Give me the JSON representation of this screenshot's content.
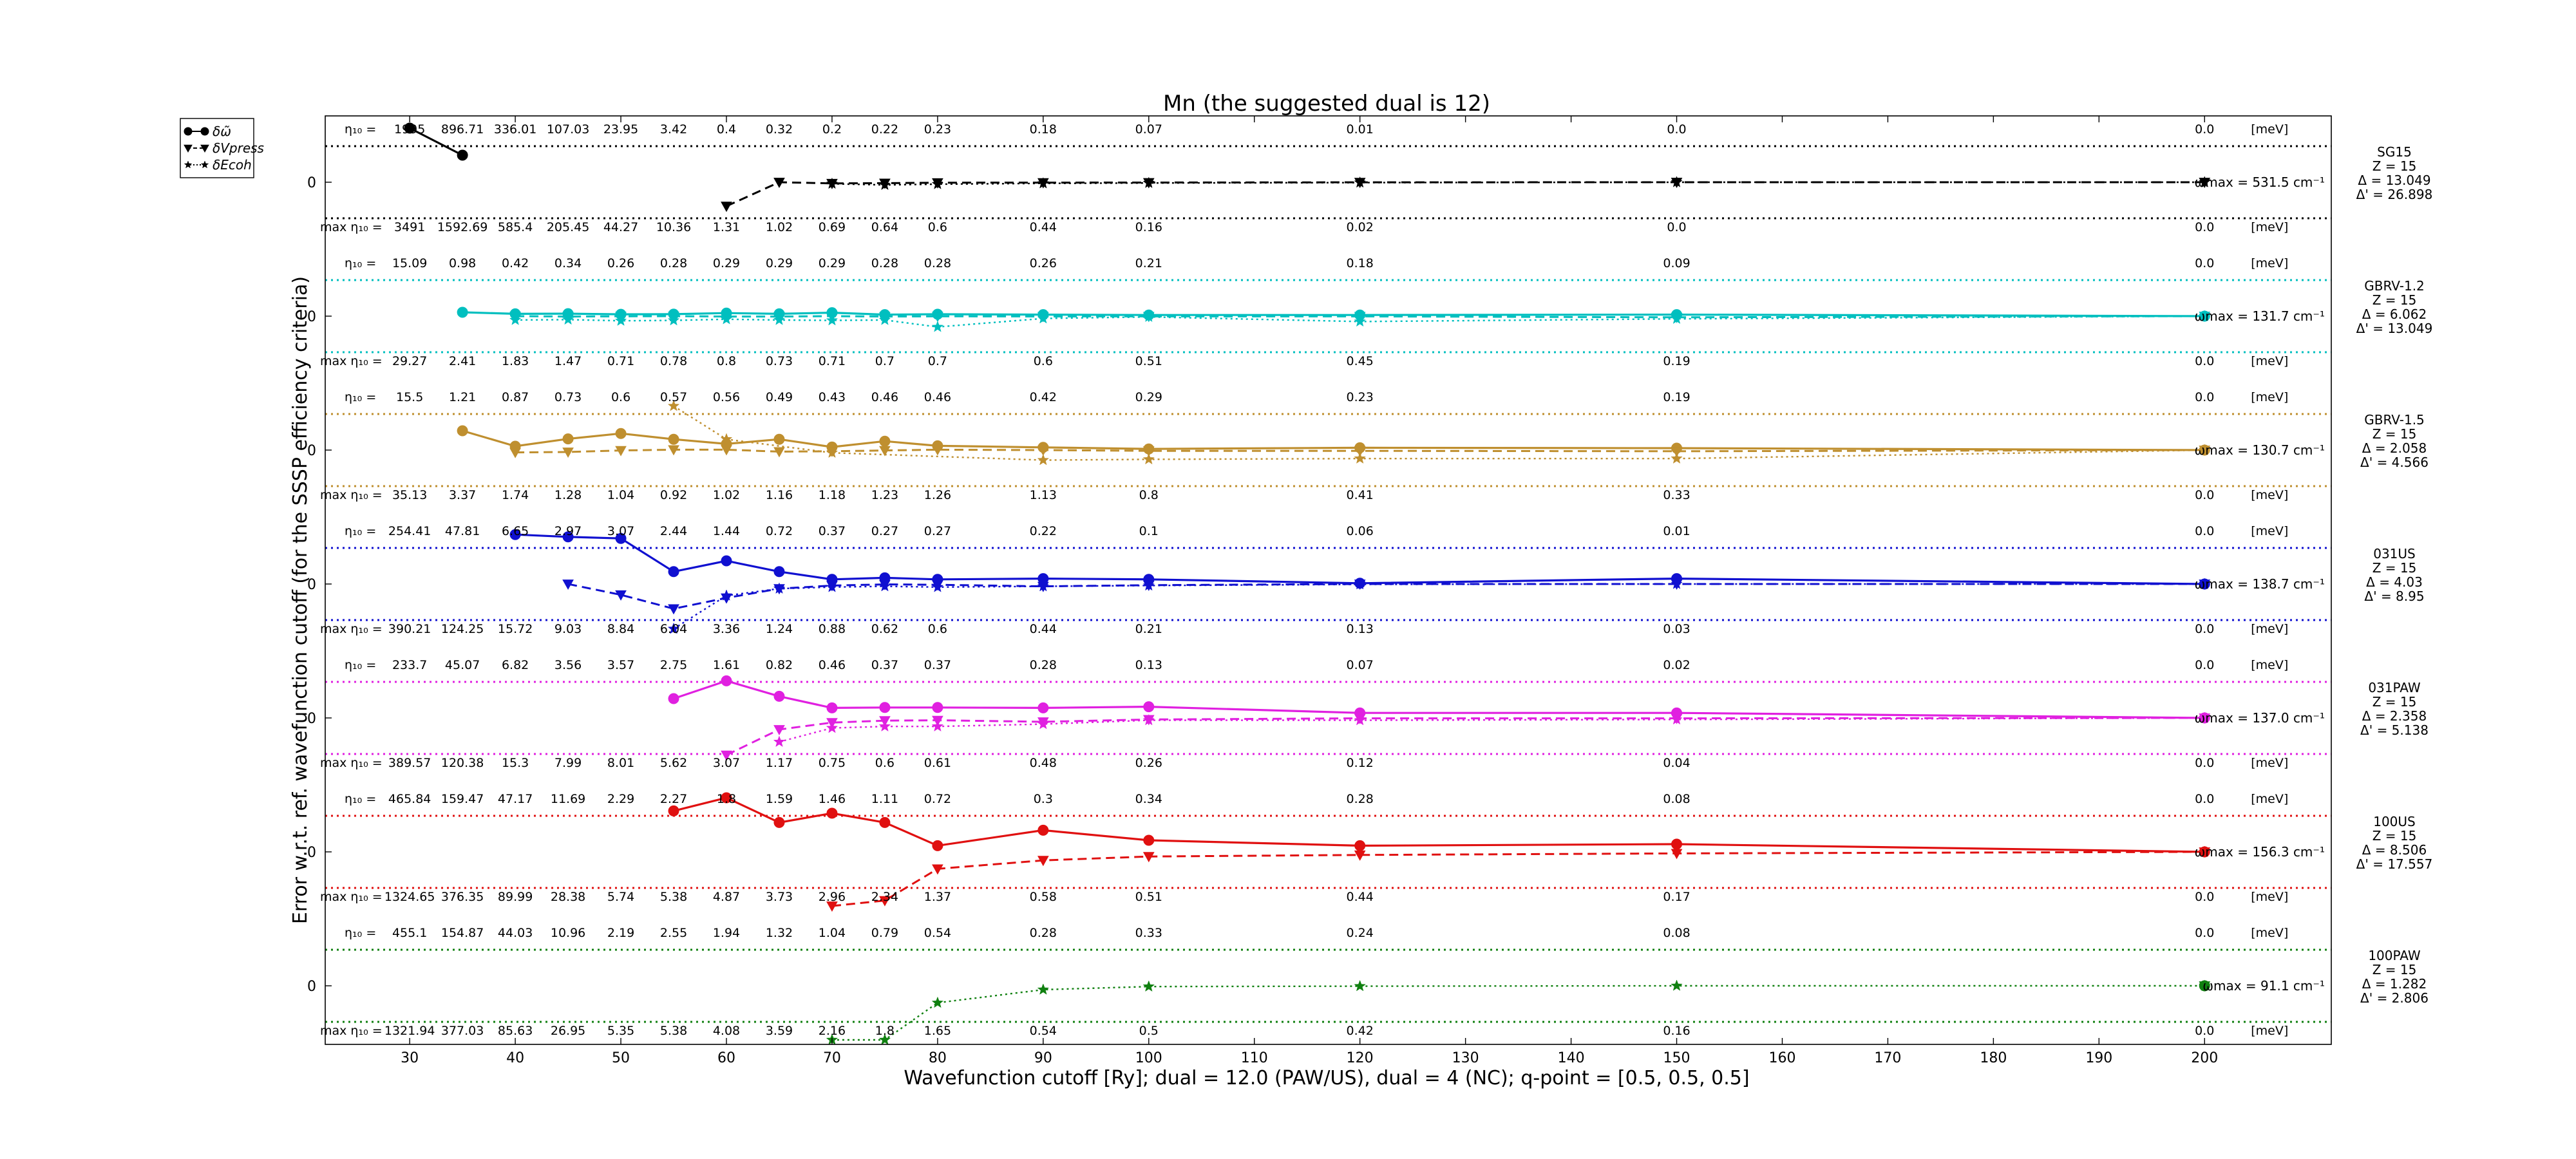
{
  "chart_data": {
    "type": "line",
    "title": "Mn (the suggested dual is 12)",
    "xlabel": "Wavefunction cutoff [Ry]; dual = 12.0 (PAW/US), dual = 4 (NC); q-point = [0.5, 0.5, 0.5]",
    "ylabel": "Error w.r.t. ref. wavefunction cutoff (for the SSSP efficiency criteria)",
    "xlim": [
      22,
      212
    ],
    "x_ticks": [
      30,
      40,
      50,
      60,
      70,
      80,
      90,
      100,
      110,
      120,
      130,
      140,
      150,
      160,
      170,
      180,
      190,
      200
    ],
    "x_tick_labels": [
      "30",
      "40",
      "50",
      "60",
      "70",
      "80",
      "90",
      "100",
      "110",
      "120",
      "130",
      "140",
      "150",
      "160",
      "170",
      "180",
      "190",
      "200"
    ],
    "zero_label": "0",
    "eta_label": "η₁₀ =",
    "max_eta_label": "max η₁₀ =",
    "unit": "[meV]",
    "legend": {
      "placement": "outside-top-left",
      "items": [
        {
          "label": "δω̃",
          "marker": "circle",
          "line": "solid"
        },
        {
          "label": "δVpress",
          "marker": "triangle-down",
          "line": "dashed"
        },
        {
          "label": "δEcoh",
          "marker": "star",
          "line": "dotted"
        }
      ]
    },
    "x": [
      30,
      35,
      40,
      45,
      50,
      55,
      60,
      65,
      70,
      75,
      80,
      90,
      100,
      120,
      150,
      200
    ],
    "panels": [
      {
        "name": "SG15",
        "color": "#000000",
        "info": [
          "SG15",
          "Z = 15",
          "Δ = 13.049",
          "Δ' = 26.898"
        ],
        "omega": "ωmax = 531.5 cm⁻¹",
        "eta": [
          "1995",
          "896.71",
          "336.01",
          "107.03",
          "23.95",
          "3.42",
          "0.4",
          "0.32",
          "0.2",
          "0.22",
          "0.23",
          "0.18",
          "0.07",
          "0.01",
          "0.0",
          "0.0"
        ],
        "max_eta": [
          "3491",
          "1592.69",
          "585.4",
          "205.45",
          "44.27",
          "10.36",
          "1.31",
          "1.02",
          "0.69",
          "0.64",
          "0.6",
          "0.44",
          "0.16",
          "0.02",
          "0.0",
          "0.0"
        ],
        "omega_err": [
          20,
          3.5,
          null,
          null,
          null,
          null,
          null,
          null,
          null,
          null,
          null,
          null,
          null,
          null,
          null,
          null
        ],
        "press_err": [
          null,
          null,
          null,
          null,
          null,
          null,
          -3.1,
          0.0,
          -0.15,
          -0.12,
          -0.06,
          -0.05,
          -0.04,
          -0.01,
          0.0,
          0.0
        ],
        "coh_err": [
          null,
          null,
          null,
          null,
          null,
          null,
          null,
          null,
          -0.2,
          -0.35,
          -0.25,
          -0.15,
          -0.1,
          -0.05,
          0.0,
          0.0
        ]
      },
      {
        "name": "GBRV-1.2",
        "color": "#00bfbf",
        "info": [
          "GBRV-1.2",
          "Z = 15",
          "Δ = 6.062",
          "Δ' = 13.049"
        ],
        "omega": "ωmax = 131.7 cm⁻¹",
        "eta": [
          "15.09",
          "0.98",
          "0.42",
          "0.34",
          "0.26",
          "0.28",
          "0.29",
          "0.29",
          "0.29",
          "0.28",
          "0.28",
          "0.26",
          "0.21",
          "0.18",
          "0.09",
          "0.0"
        ],
        "max_eta": [
          "29.27",
          "2.41",
          "1.83",
          "1.47",
          "0.71",
          "0.78",
          "0.8",
          "0.73",
          "0.71",
          "0.7",
          "0.7",
          "0.6",
          "0.51",
          "0.45",
          "0.19",
          "0.0"
        ],
        "omega_err": [
          null,
          0.5,
          0.3,
          0.32,
          0.24,
          0.26,
          0.4,
          0.3,
          0.45,
          0.2,
          0.25,
          0.2,
          0.15,
          0.15,
          0.2,
          0.0
        ],
        "press_err": [
          null,
          null,
          0.0,
          -0.05,
          -0.02,
          0.0,
          -0.05,
          -0.05,
          0.0,
          -0.05,
          -0.02,
          -0.04,
          -0.03,
          -0.03,
          -0.15,
          0.0
        ],
        "coh_err": [
          null,
          null,
          -0.5,
          -0.45,
          -0.6,
          -0.55,
          -0.4,
          -0.5,
          -0.55,
          -0.5,
          -1.4,
          -0.3,
          -0.1,
          -0.7,
          -0.35,
          0.0
        ]
      },
      {
        "name": "GBRV-1.5",
        "color": "#bf8f2f",
        "info": [
          "GBRV-1.5",
          "Z = 15",
          "Δ = 2.058",
          "Δ' = 4.566"
        ],
        "omega": "ωmax = 130.7 cm⁻¹",
        "eta": [
          "15.5",
          "1.21",
          "0.87",
          "0.73",
          "0.6",
          "0.57",
          "0.56",
          "0.49",
          "0.43",
          "0.46",
          "0.46",
          "0.42",
          "0.29",
          "0.23",
          "0.19",
          "0.0"
        ],
        "max_eta": [
          "35.13",
          "3.37",
          "1.74",
          "1.28",
          "1.04",
          "0.92",
          "1.02",
          "1.16",
          "1.18",
          "1.23",
          "1.26",
          "1.13",
          "0.8",
          "0.41",
          "0.33",
          "0.0"
        ],
        "omega_err": [
          null,
          2.5,
          0.5,
          1.45,
          2.15,
          1.4,
          0.8,
          1.4,
          0.4,
          1.15,
          0.55,
          0.35,
          0.15,
          0.3,
          0.25,
          0.0
        ],
        "press_err": [
          null,
          null,
          -0.3,
          -0.25,
          -0.05,
          0.05,
          0.05,
          -0.2,
          -0.15,
          -0.05,
          0.05,
          0.0,
          -0.1,
          -0.1,
          -0.15,
          0.0
        ],
        "coh_err": [
          null,
          null,
          null,
          null,
          null,
          5.7,
          1.4,
          null,
          -0.35,
          null,
          null,
          -1.3,
          -1.2,
          -1.1,
          -1.1,
          0.0
        ]
      },
      {
        "name": "031US",
        "color": "#1010d0",
        "info": [
          "031US",
          "Z = 15",
          "Δ = 4.03",
          "Δ' = 8.95"
        ],
        "omega": "ωmax = 138.7 cm⁻¹",
        "eta": [
          "254.41",
          "47.81",
          "6.65",
          "2.97",
          "3.07",
          "2.44",
          "1.44",
          "0.72",
          "0.37",
          "0.27",
          "0.27",
          "0.22",
          "0.1",
          "0.06",
          "0.01",
          "0.0"
        ],
        "max_eta": [
          "390.21",
          "124.25",
          "15.72",
          "9.03",
          "8.84",
          "6.04",
          "3.36",
          "1.24",
          "0.88",
          "0.62",
          "0.6",
          "0.44",
          "0.21",
          "0.13",
          "0.03",
          "0.0"
        ],
        "omega_err": [
          null,
          null,
          6.4,
          6.1,
          5.9,
          1.6,
          3.0,
          1.6,
          0.6,
          0.8,
          0.6,
          0.7,
          0.6,
          0.1,
          0.7,
          0.0
        ],
        "press_err": [
          null,
          null,
          null,
          0.0,
          -1.4,
          -3.2,
          -1.8,
          -0.6,
          -0.2,
          -0.05,
          -0.1,
          -0.3,
          -0.15,
          0.0,
          0.0,
          0.0
        ],
        "coh_err": [
          null,
          null,
          null,
          null,
          null,
          -5.8,
          -1.5,
          -0.6,
          -0.4,
          -0.3,
          -0.4,
          -0.3,
          -0.2,
          -0.05,
          0.0,
          0.0
        ]
      },
      {
        "name": "031PAW",
        "color": "#e020e0",
        "info": [
          "031PAW",
          "Z = 15",
          "Δ = 2.358",
          "Δ' = 5.138"
        ],
        "omega": "ωmax = 137.0 cm⁻¹",
        "eta": [
          "233.7",
          "45.07",
          "6.82",
          "3.56",
          "3.57",
          "2.75",
          "1.61",
          "0.82",
          "0.46",
          "0.37",
          "0.37",
          "0.28",
          "0.13",
          "0.07",
          "0.02",
          "0.0"
        ],
        "max_eta": [
          "389.57",
          "120.38",
          "15.3",
          "7.99",
          "8.01",
          "5.62",
          "3.07",
          "1.17",
          "0.75",
          "0.6",
          "0.61",
          "0.48",
          "0.26",
          "0.12",
          "0.04",
          "0.0"
        ],
        "omega_err": [
          null,
          null,
          null,
          null,
          null,
          2.5,
          4.8,
          2.8,
          1.3,
          1.35,
          1.35,
          1.3,
          1.45,
          0.65,
          0.65,
          0.0
        ],
        "press_err": [
          null,
          null,
          null,
          null,
          null,
          null,
          -4.8,
          -1.5,
          -0.6,
          -0.35,
          -0.3,
          -0.5,
          -0.2,
          -0.05,
          -0.05,
          0.0
        ],
        "coh_err": [
          null,
          null,
          null,
          null,
          null,
          null,
          null,
          -3.1,
          -1.3,
          -1.1,
          -1.1,
          -0.8,
          -0.3,
          -0.3,
          -0.2,
          0.0
        ]
      },
      {
        "name": "100US",
        "color": "#e01010",
        "info": [
          "100US",
          "Z = 15",
          "Δ = 8.506",
          "Δ' = 17.557"
        ],
        "omega": "ωmax = 156.3 cm⁻¹",
        "eta": [
          "465.84",
          "159.47",
          "47.17",
          "11.69",
          "2.29",
          "2.27",
          "1.8",
          "1.59",
          "1.46",
          "1.11",
          "0.72",
          "0.3",
          "0.34",
          "0.28",
          "0.08",
          "0.0"
        ],
        "max_eta": [
          "1324.65",
          "376.35",
          "89.99",
          "28.38",
          "5.74",
          "5.38",
          "4.87",
          "3.73",
          "2.96",
          "2.34",
          "1.37",
          "0.58",
          "0.51",
          "0.44",
          "0.17",
          "0.0"
        ],
        "omega_err": [
          null,
          null,
          null,
          null,
          null,
          5.3,
          7.6,
          3.8,
          5.0,
          3.8,
          0.8,
          2.8,
          1.5,
          0.8,
          1.0,
          0.0
        ],
        "press_err": [
          null,
          null,
          null,
          null,
          null,
          null,
          null,
          null,
          -9.5,
          -6.3,
          -2.2,
          -1.1,
          -0.6,
          -0.4,
          -0.2,
          0.0
        ],
        "coh_err": [
          null,
          null,
          null,
          null,
          null,
          null,
          null,
          null,
          null,
          null,
          null,
          null,
          null,
          null,
          null,
          0.0
        ]
      },
      {
        "name": "100PAW",
        "color": "#108010",
        "info": [
          "100PAW",
          "Z = 15",
          "Δ = 1.282",
          "Δ' = 2.806"
        ],
        "omega": "ωmax = 91.1 cm⁻¹",
        "eta": [
          "455.1",
          "154.87",
          "44.03",
          "10.96",
          "2.19",
          "2.55",
          "1.94",
          "1.32",
          "1.04",
          "0.79",
          "0.54",
          "0.28",
          "0.33",
          "0.24",
          "0.08",
          "0.0"
        ],
        "max_eta": [
          "1321.94",
          "377.03",
          "85.63",
          "26.95",
          "5.35",
          "5.38",
          "4.08",
          "3.59",
          "2.16",
          "1.8",
          "1.65",
          "0.54",
          "0.5",
          "0.42",
          "0.16",
          "0.0"
        ],
        "omega_err": [
          null,
          null,
          null,
          null,
          null,
          null,
          null,
          null,
          null,
          null,
          null,
          null,
          null,
          null,
          null,
          0.0
        ],
        "press_err": [
          null,
          null,
          null,
          null,
          null,
          null,
          null,
          null,
          null,
          null,
          null,
          null,
          null,
          null,
          null,
          0.0
        ],
        "coh_err": [
          null,
          null,
          null,
          null,
          null,
          null,
          null,
          null,
          -11.5,
          -7.0,
          -2.2,
          -0.5,
          -0.1,
          -0.05,
          0.0,
          0.0
        ]
      }
    ]
  }
}
